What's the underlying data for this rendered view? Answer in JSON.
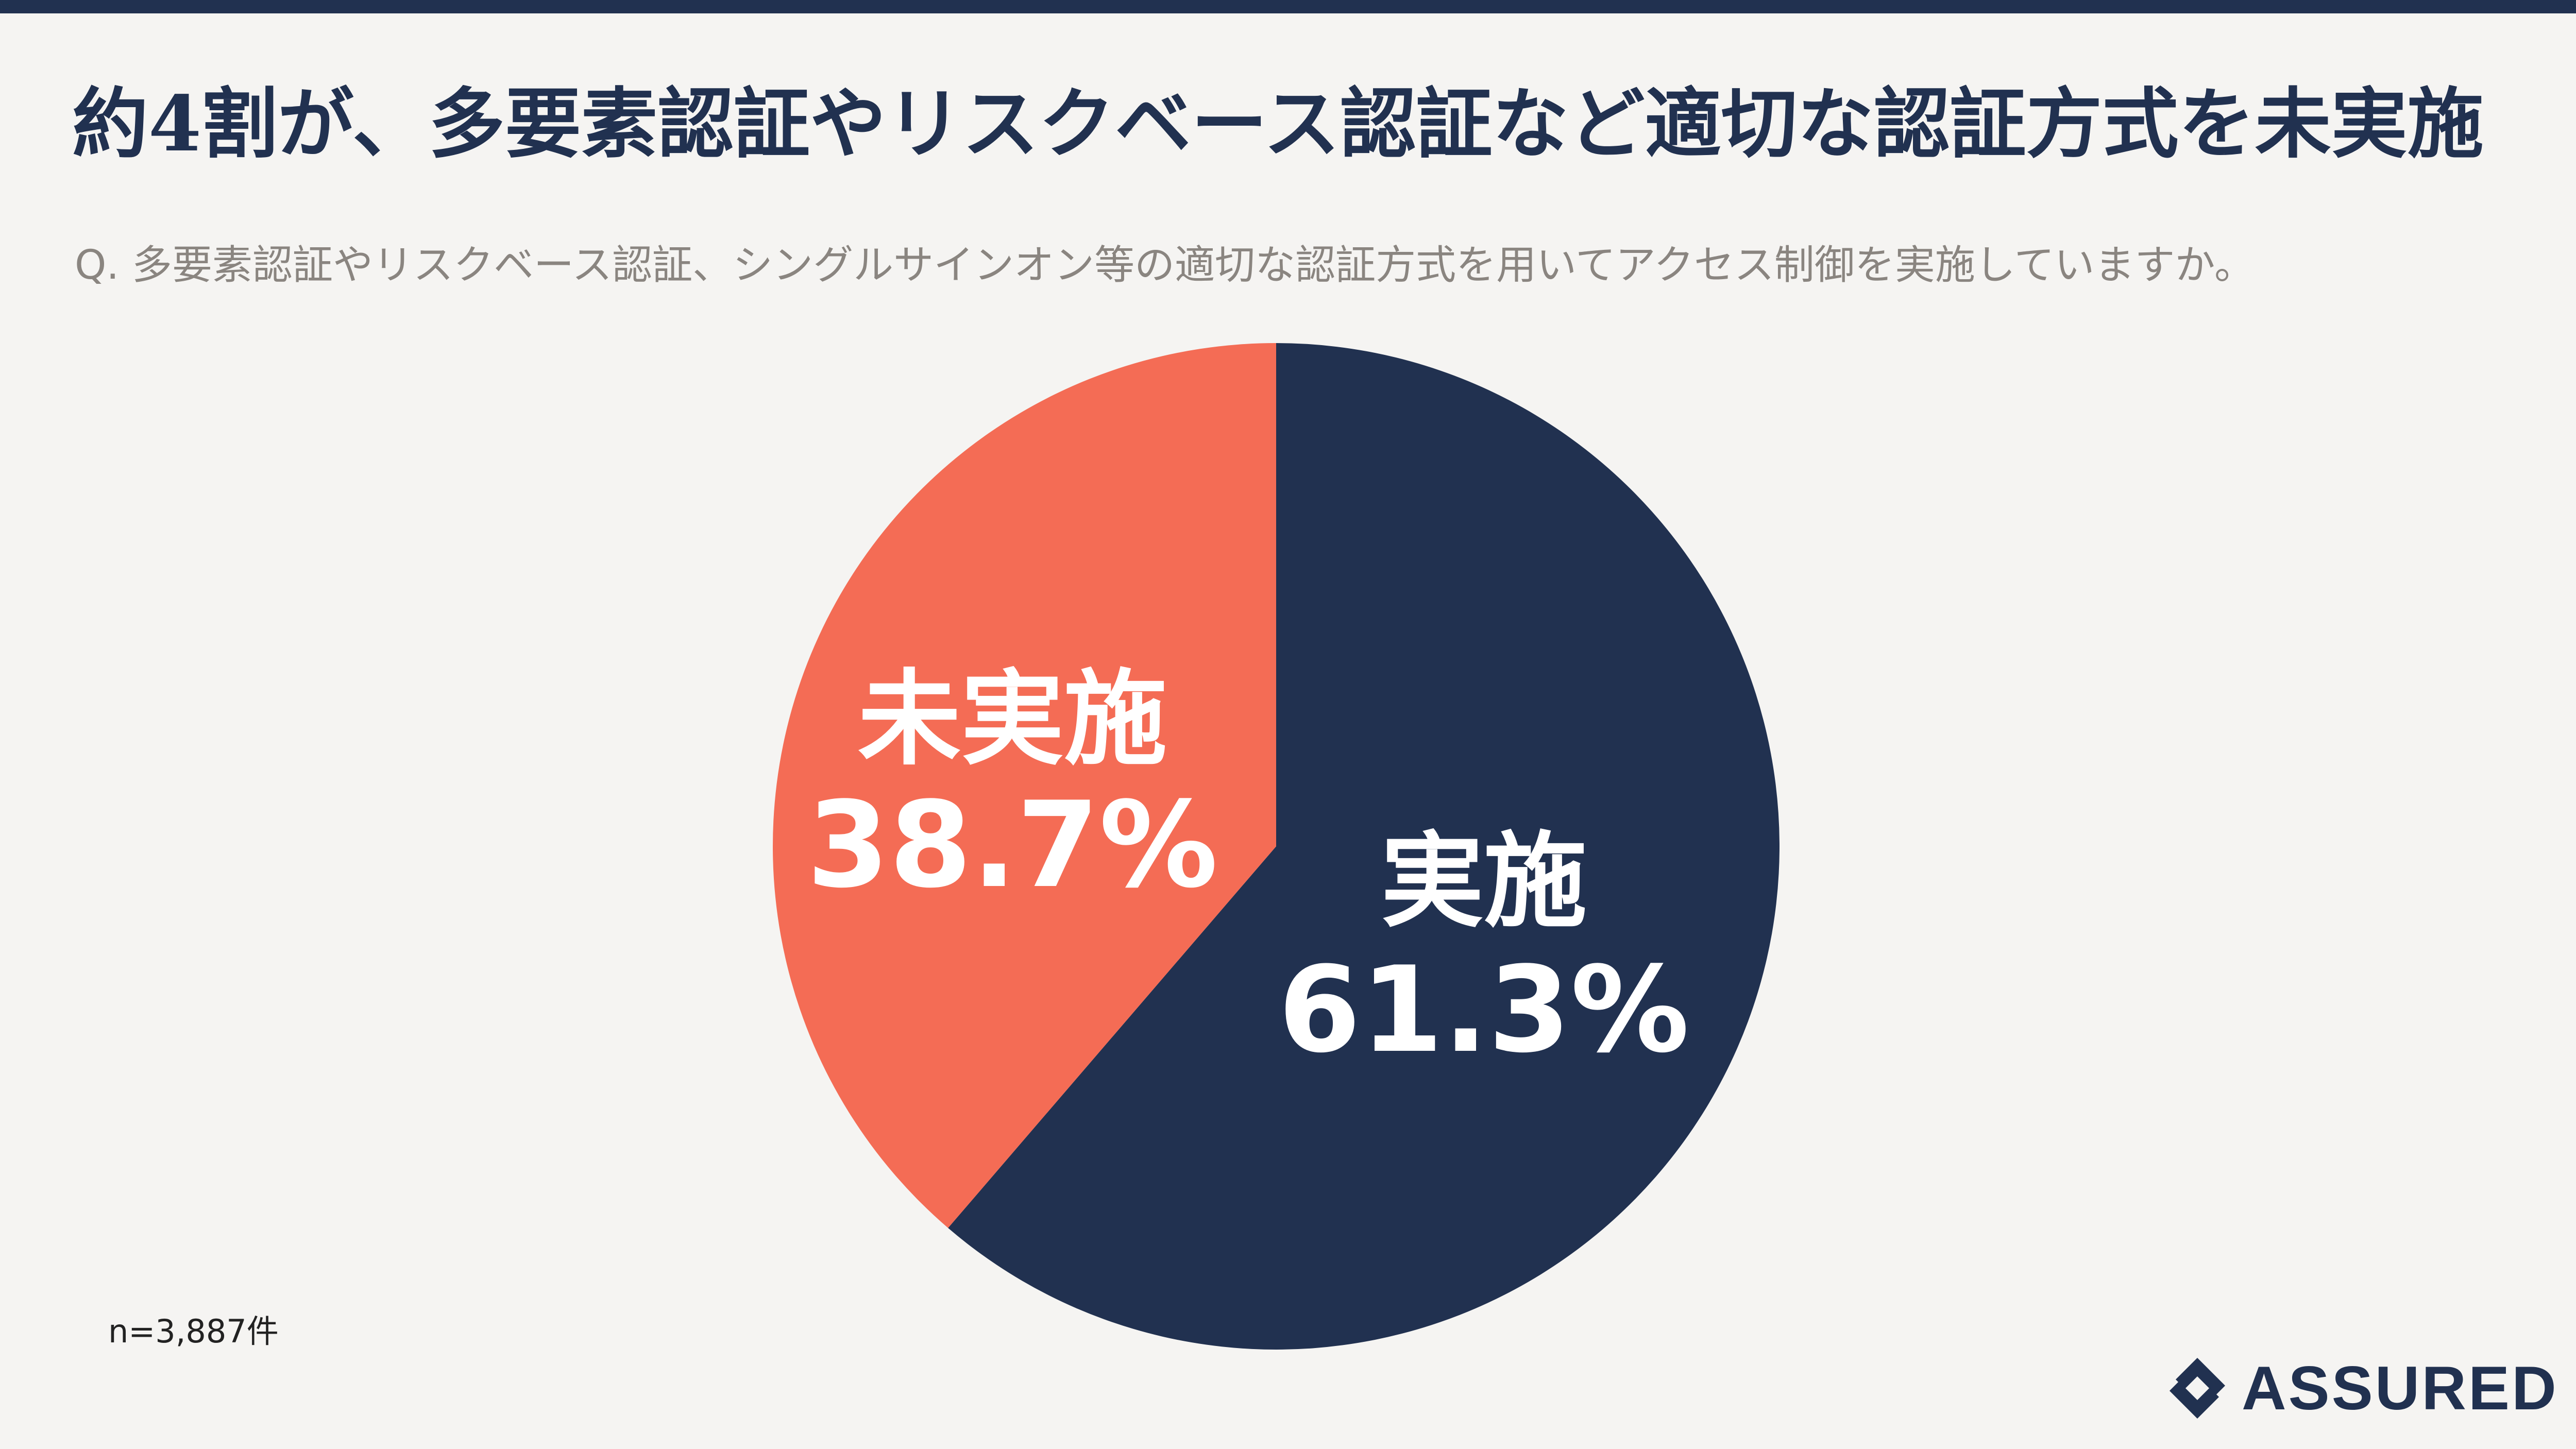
{
  "title": "約4割が、多要素認証やリスクベース認証など適切な認証方式を未実施",
  "question": "Q. 多要素認証やリスクベース認証、シングルサインオン等の適切な認証方式を用いてアクセス制御を実施していますか。",
  "sample_size": "n=3,887件",
  "brand": "ASSURED",
  "chart_data": {
    "type": "pie",
    "slices": [
      {
        "label": "実施",
        "value": 61.3,
        "value_text": "61.3%",
        "color": "#213150"
      },
      {
        "label": "未実施",
        "value": 38.7,
        "value_text": "38.7%",
        "color": "#f46c55"
      }
    ],
    "start": "12 o'clock",
    "direction": "clockwise"
  }
}
